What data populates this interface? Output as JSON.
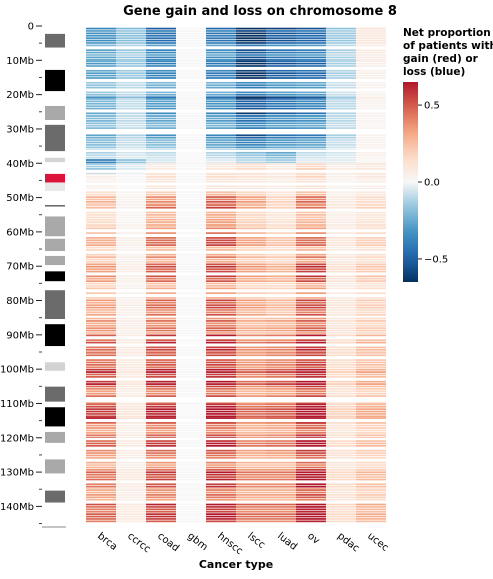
{
  "chart_data": {
    "type": "heatmap",
    "title": "Gene gain and loss on chromosome 8",
    "xlabel": "Cancer type",
    "ylabel": "",
    "categories": [
      "brca",
      "ccrcc",
      "coad",
      "gbm",
      "hnscc",
      "lscc",
      "luad",
      "ov",
      "pdac",
      "ucec"
    ],
    "y_unit": "Mb",
    "ylim": [
      0,
      146
    ],
    "y_ticks": [
      {
        "value": 0,
        "label": "0"
      },
      {
        "value": 10,
        "label": "10Mb"
      },
      {
        "value": 20,
        "label": "20Mb"
      },
      {
        "value": 30,
        "label": "30Mb"
      },
      {
        "value": 40,
        "label": "40Mb"
      },
      {
        "value": 50,
        "label": "50Mb"
      },
      {
        "value": 60,
        "label": "60Mb"
      },
      {
        "value": 70,
        "label": "70Mb"
      },
      {
        "value": 80,
        "label": "80Mb"
      },
      {
        "value": 90,
        "label": "90Mb"
      },
      {
        "value": 100,
        "label": "100Mb"
      },
      {
        "value": 110,
        "label": "110Mb"
      },
      {
        "value": 120,
        "label": "120Mb"
      },
      {
        "value": 130,
        "label": "130Mb"
      },
      {
        "value": 140,
        "label": "140Mb"
      }
    ],
    "colorbar": {
      "title_lines": [
        "Net proportion",
        "of patients with",
        "gain (red) or",
        "loss (blue)"
      ],
      "range": [
        -0.65,
        0.65
      ],
      "ticks": [
        {
          "value": 0.5,
          "label": "0.5"
        },
        {
          "value": 0.0,
          "label": "0.0"
        },
        {
          "value": -0.5,
          "label": "−0.5"
        }
      ],
      "low_color": "#053061",
      "mid_color": "#f7f7f7",
      "high_color": "#67001f"
    },
    "cytobands": [
      {
        "start": 0,
        "end": 2.3,
        "stain": "white"
      },
      {
        "start": 2.3,
        "end": 6.3,
        "stain": "#6b6b6b"
      },
      {
        "start": 6.3,
        "end": 12.8,
        "stain": "white"
      },
      {
        "start": 12.8,
        "end": 19.0,
        "stain": "#000000"
      },
      {
        "start": 19.0,
        "end": 23.3,
        "stain": "white"
      },
      {
        "start": 23.3,
        "end": 27.4,
        "stain": "#a9a9a9"
      },
      {
        "start": 27.4,
        "end": 28.8,
        "stain": "white"
      },
      {
        "start": 28.8,
        "end": 36.5,
        "stain": "#6b6b6b"
      },
      {
        "start": 36.5,
        "end": 38.4,
        "stain": "white"
      },
      {
        "start": 38.4,
        "end": 39.7,
        "stain": "#d3d3d3"
      },
      {
        "start": 39.7,
        "end": 43.1,
        "stain": "white"
      },
      {
        "start": 43.1,
        "end": 45.6,
        "stain": "#dc143c"
      },
      {
        "start": 45.6,
        "end": 48.1,
        "stain": "#e8e8e8"
      },
      {
        "start": 48.1,
        "end": 52.2,
        "stain": "white"
      },
      {
        "start": 52.2,
        "end": 52.6,
        "stain": "#555555"
      },
      {
        "start": 52.6,
        "end": 55.5,
        "stain": "white"
      },
      {
        "start": 55.5,
        "end": 61.3,
        "stain": "#a9a9a9"
      },
      {
        "start": 61.3,
        "end": 62.0,
        "stain": "white"
      },
      {
        "start": 62.0,
        "end": 65.6,
        "stain": "#a9a9a9"
      },
      {
        "start": 65.6,
        "end": 67.0,
        "stain": "white"
      },
      {
        "start": 67.0,
        "end": 69.7,
        "stain": "#a9a9a9"
      },
      {
        "start": 69.7,
        "end": 71.5,
        "stain": "white"
      },
      {
        "start": 71.5,
        "end": 74.4,
        "stain": "#000000"
      },
      {
        "start": 74.4,
        "end": 77.0,
        "stain": "white"
      },
      {
        "start": 77.0,
        "end": 85.4,
        "stain": "#6b6b6b"
      },
      {
        "start": 85.4,
        "end": 86.9,
        "stain": "white"
      },
      {
        "start": 86.9,
        "end": 93.3,
        "stain": "#000000"
      },
      {
        "start": 93.3,
        "end": 98.0,
        "stain": "white"
      },
      {
        "start": 98.0,
        "end": 100.5,
        "stain": "#d3d3d3"
      },
      {
        "start": 100.5,
        "end": 105.1,
        "stain": "white"
      },
      {
        "start": 105.1,
        "end": 109.5,
        "stain": "#6b6b6b"
      },
      {
        "start": 109.5,
        "end": 111.1,
        "stain": "white"
      },
      {
        "start": 111.1,
        "end": 116.7,
        "stain": "#000000"
      },
      {
        "start": 116.7,
        "end": 118.3,
        "stain": "white"
      },
      {
        "start": 118.3,
        "end": 121.5,
        "stain": "#a9a9a9"
      },
      {
        "start": 121.5,
        "end": 126.3,
        "stain": "white"
      },
      {
        "start": 126.3,
        "end": 130.4,
        "stain": "#a9a9a9"
      },
      {
        "start": 130.4,
        "end": 135.4,
        "stain": "white"
      },
      {
        "start": 135.4,
        "end": 138.9,
        "stain": "#6b6b6b"
      },
      {
        "start": 138.9,
        "end": 146.0,
        "stain": "white"
      }
    ],
    "segments": [
      {
        "start": 0.5,
        "end": 10.0,
        "values": [
          -0.22,
          -0.12,
          -0.3,
          0.0,
          -0.28,
          -0.45,
          -0.35,
          -0.32,
          -0.1,
          0.06
        ]
      },
      {
        "start": 10.0,
        "end": 21.0,
        "values": [
          -0.18,
          -0.1,
          -0.24,
          0.0,
          -0.26,
          -0.42,
          -0.33,
          -0.3,
          -0.08,
          0.03
        ]
      },
      {
        "start": 21.0,
        "end": 26.0,
        "values": [
          -0.15,
          -0.06,
          -0.2,
          0.0,
          -0.22,
          -0.36,
          -0.3,
          -0.26,
          -0.07,
          0.02
        ]
      },
      {
        "start": 26.0,
        "end": 33.0,
        "values": [
          -0.18,
          -0.08,
          -0.22,
          0.0,
          -0.25,
          -0.38,
          -0.3,
          -0.28,
          -0.09,
          0.02
        ]
      },
      {
        "start": 33.0,
        "end": 36.0,
        "values": [
          -0.14,
          -0.06,
          -0.14,
          0.0,
          -0.2,
          -0.28,
          -0.22,
          -0.2,
          -0.06,
          0.02
        ]
      },
      {
        "start": 36.0,
        "end": 38.8,
        "values": [
          -0.1,
          -0.05,
          -0.08,
          0.0,
          -0.1,
          -0.16,
          -0.22,
          -0.08,
          -0.05,
          0.04
        ]
      },
      {
        "start": 38.8,
        "end": 40.0,
        "values": [
          -0.45,
          -0.2,
          -0.06,
          0.0,
          -0.04,
          -0.12,
          -0.16,
          -0.04,
          -0.04,
          0.02
        ]
      },
      {
        "start": 40.0,
        "end": 43.0,
        "values": [
          -0.1,
          -0.03,
          0.05,
          0.0,
          0.06,
          0.1,
          0.05,
          0.12,
          0.04,
          0.06
        ]
      },
      {
        "start": 43.0,
        "end": 47.5,
        "values": [
          0.04,
          0.0,
          0.1,
          0.0,
          0.1,
          0.08,
          0.06,
          0.12,
          0.03,
          0.06
        ]
      },
      {
        "start": 47.5,
        "end": 52.0,
        "values": [
          0.18,
          0.02,
          0.25,
          0.0,
          0.32,
          0.22,
          0.12,
          0.3,
          0.05,
          0.1
        ]
      },
      {
        "start": 52.0,
        "end": 58.0,
        "values": [
          0.16,
          0.02,
          0.3,
          0.0,
          0.35,
          0.2,
          0.12,
          0.28,
          0.06,
          0.12
        ]
      },
      {
        "start": 58.0,
        "end": 65.0,
        "values": [
          0.18,
          0.03,
          0.28,
          0.0,
          0.33,
          0.2,
          0.14,
          0.28,
          0.06,
          0.12
        ]
      },
      {
        "start": 65.0,
        "end": 72.0,
        "values": [
          0.22,
          0.04,
          0.32,
          0.0,
          0.35,
          0.22,
          0.18,
          0.36,
          0.08,
          0.14
        ]
      },
      {
        "start": 72.0,
        "end": 79.0,
        "values": [
          0.22,
          0.03,
          0.3,
          0.0,
          0.33,
          0.2,
          0.18,
          0.34,
          0.07,
          0.14
        ]
      },
      {
        "start": 79.0,
        "end": 85.0,
        "values": [
          0.2,
          0.03,
          0.28,
          0.0,
          0.32,
          0.2,
          0.16,
          0.32,
          0.06,
          0.12
        ]
      },
      {
        "start": 85.0,
        "end": 95.0,
        "values": [
          0.32,
          0.05,
          0.38,
          0.0,
          0.42,
          0.26,
          0.28,
          0.42,
          0.1,
          0.18
        ]
      },
      {
        "start": 95.0,
        "end": 110.0,
        "values": [
          0.38,
          0.06,
          0.42,
          0.0,
          0.45,
          0.3,
          0.34,
          0.46,
          0.12,
          0.2
        ]
      },
      {
        "start": 110.0,
        "end": 114.0,
        "values": [
          0.36,
          0.06,
          0.4,
          0.0,
          0.44,
          0.3,
          0.32,
          0.48,
          0.12,
          0.2
        ]
      },
      {
        "start": 114.0,
        "end": 115.5,
        "values": [
          0.55,
          0.08,
          0.5,
          0.0,
          0.52,
          0.36,
          0.4,
          0.62,
          0.14,
          0.24
        ]
      },
      {
        "start": 115.5,
        "end": 120.0,
        "values": [
          0.34,
          0.05,
          0.38,
          0.0,
          0.42,
          0.28,
          0.3,
          0.46,
          0.1,
          0.18
        ]
      },
      {
        "start": 120.0,
        "end": 127.0,
        "values": [
          0.3,
          0.05,
          0.36,
          0.0,
          0.4,
          0.26,
          0.28,
          0.44,
          0.1,
          0.16
        ]
      },
      {
        "start": 127.0,
        "end": 135.0,
        "values": [
          0.28,
          0.05,
          0.34,
          0.0,
          0.38,
          0.26,
          0.26,
          0.44,
          0.1,
          0.16
        ]
      },
      {
        "start": 135.0,
        "end": 145.5,
        "values": [
          0.3,
          0.05,
          0.36,
          0.0,
          0.4,
          0.28,
          0.28,
          0.46,
          0.1,
          0.18
        ]
      }
    ]
  }
}
